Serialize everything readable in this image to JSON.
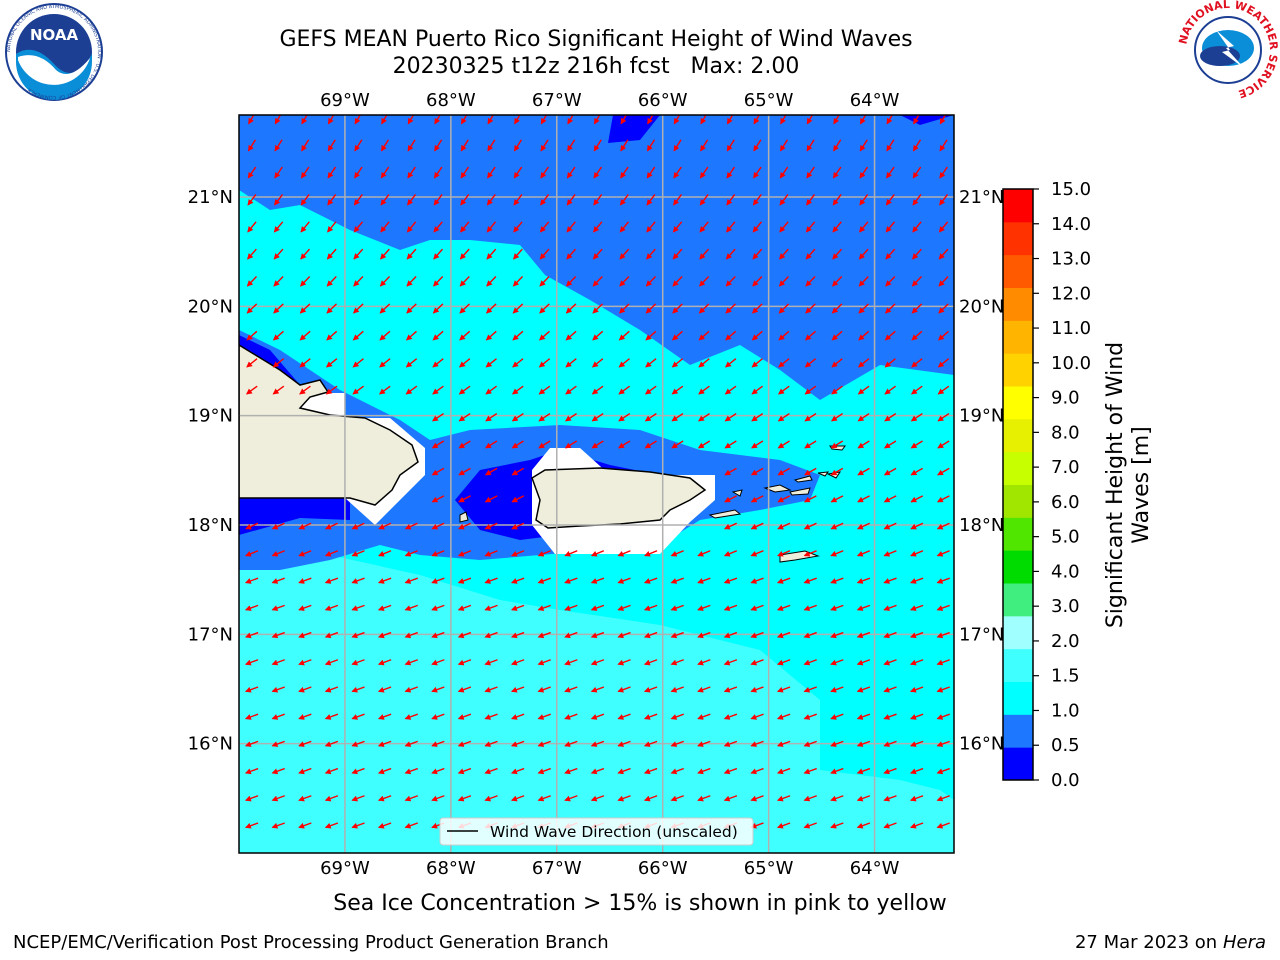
{
  "header": {
    "title_line1": "GEFS MEAN Puerto Rico Significant Height of Wind Waves",
    "title_line2": "20230325 t12z 216h fcst   Max: 2.00"
  },
  "logos": {
    "left": "NOAA",
    "left_ring_text": "NATIONAL OCEANIC AND ATMOSPHERIC ADMINISTRATION · U.S. DEPARTMENT OF COMMERCE",
    "right_ring_text": "NATIONAL WEATHER SERVICE"
  },
  "map": {
    "lon_labels": [
      "69°W",
      "68°W",
      "67°W",
      "66°W",
      "65°W",
      "64°W"
    ],
    "lat_labels": [
      "21°N",
      "20°N",
      "19°N",
      "18°N",
      "17°N",
      "16°N"
    ],
    "lon_range": [
      -70.0,
      -63.25
    ],
    "lat_range": [
      15.0,
      21.75
    ],
    "legend": "Wind Wave Direction (unscaled)",
    "arrow_color": "#ff0000"
  },
  "colorbar": {
    "label_line1": "Significant Height of Wind",
    "label_line2": "Waves [m]",
    "ticks": [
      "15.0",
      "14.0",
      "13.0",
      "12.0",
      "11.0",
      "10.0",
      "9.0",
      "8.0",
      "7.0",
      "6.0",
      "5.0",
      "4.0",
      "3.0",
      "2.0",
      "1.5",
      "1.0",
      "0.5",
      "0.0"
    ],
    "colors": [
      "#0000ff",
      "#1e78ff",
      "#00ffff",
      "#40ffff",
      "#a0ffff",
      "#40ee80",
      "#00dc00",
      "#50e600",
      "#a0e600",
      "#c8ff00",
      "#e6f000",
      "#ffff00",
      "#ffd200",
      "#ffb400",
      "#ff8c00",
      "#ff5a00",
      "#ff3200",
      "#ff0000"
    ]
  },
  "subtitle": "Sea Ice Concentration > 15% is shown in pink to yellow",
  "footer": {
    "left": "NCEP/EMC/Verification Post Processing Product Generation Branch",
    "right_date": "27 Mar 2023 on",
    "right_host": "Hera"
  }
}
